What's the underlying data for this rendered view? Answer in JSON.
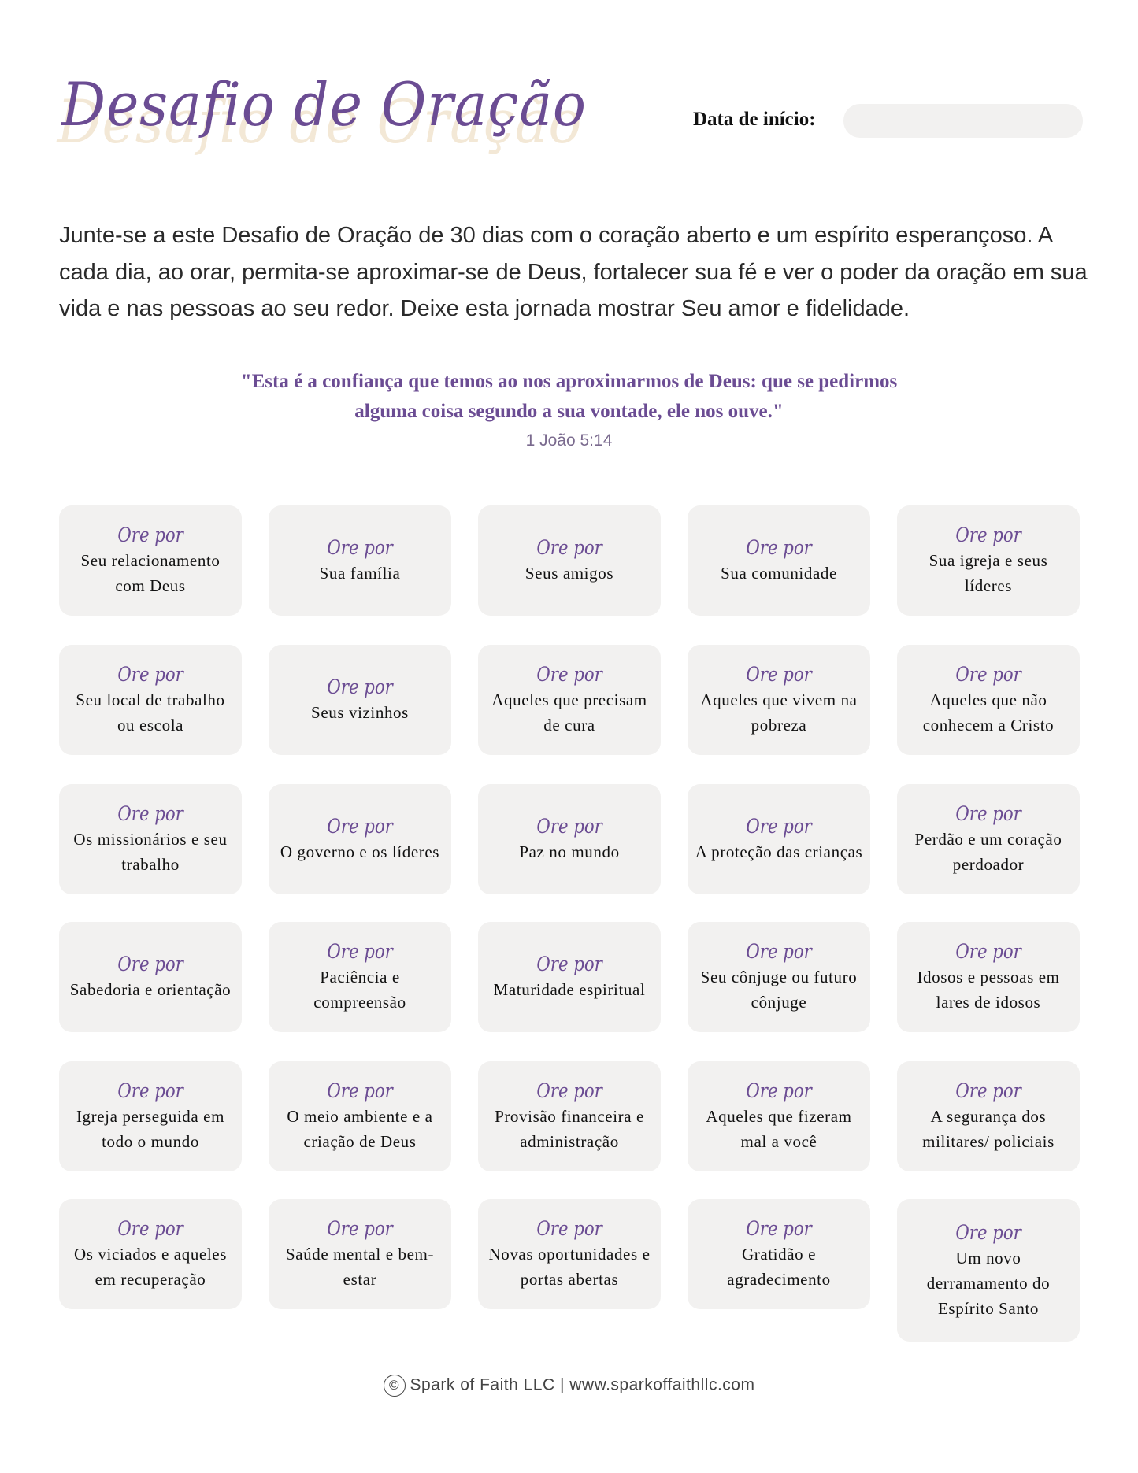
{
  "header": {
    "title": "Desafio de Oração",
    "date_label": "Data de início:",
    "date_value": ""
  },
  "intro": "Junte-se a este Desafio de Oração de 30 dias com o coração aberto e um espírito esperançoso. A cada dia, ao orar, permita-se aproximar-se de Deus, fortalecer sua fé e ver o poder da oração em sua vida e nas pessoas ao seu redor. Deixe esta jornada mostrar Seu amor e fidelidade.",
  "quote": {
    "text": "\"Esta é a confiança que temos ao nos aproximarmos de Deus: que se pedirmos alguma coisa segundo a sua vontade, ele nos ouve.\"",
    "reference": "1 João 5:14"
  },
  "card_heading": "Ore por",
  "cards": [
    "Seu relacionamento com Deus",
    "Sua família",
    "Seus amigos",
    "Sua comunidade",
    "Sua igreja e seus líderes",
    "Seu local de trabalho ou escola",
    "Seus vizinhos",
    "Aqueles que precisam de cura",
    "Aqueles que vivem na pobreza",
    "Aqueles que não conhecem a Cristo",
    "Os missionários e seu trabalho",
    "O governo e os líderes",
    "Paz no mundo",
    "A proteção das crianças",
    "Perdão e um coração perdoador",
    "Sabedoria e orientação",
    "Paciência e compreensão",
    "Maturidade espiritual",
    "Seu cônjuge ou futuro cônjuge",
    "Idosos e pessoas em lares de idosos",
    "Igreja perseguida em todo o mundo",
    "O meio ambiente e a criação de Deus",
    "Provisão financeira e administração",
    "Aqueles que fizeram mal a você",
    "A segurança dos militares/ policiais",
    "Os viciados e aqueles em recuperação",
    "Saúde mental e bem-estar",
    "Novas oportunidades e portas abertas",
    "Gratidão e agradecimento",
    "Um novo derramamento do Espírito Santo"
  ],
  "footer": {
    "copyright_symbol": "©",
    "text": "Spark of Faith LLC | www.sparkoffaithllc.com"
  },
  "colors": {
    "accent": "#6b4c93",
    "card_bg": "#f2f1f0",
    "title_shadow": "#f3e8d6"
  }
}
